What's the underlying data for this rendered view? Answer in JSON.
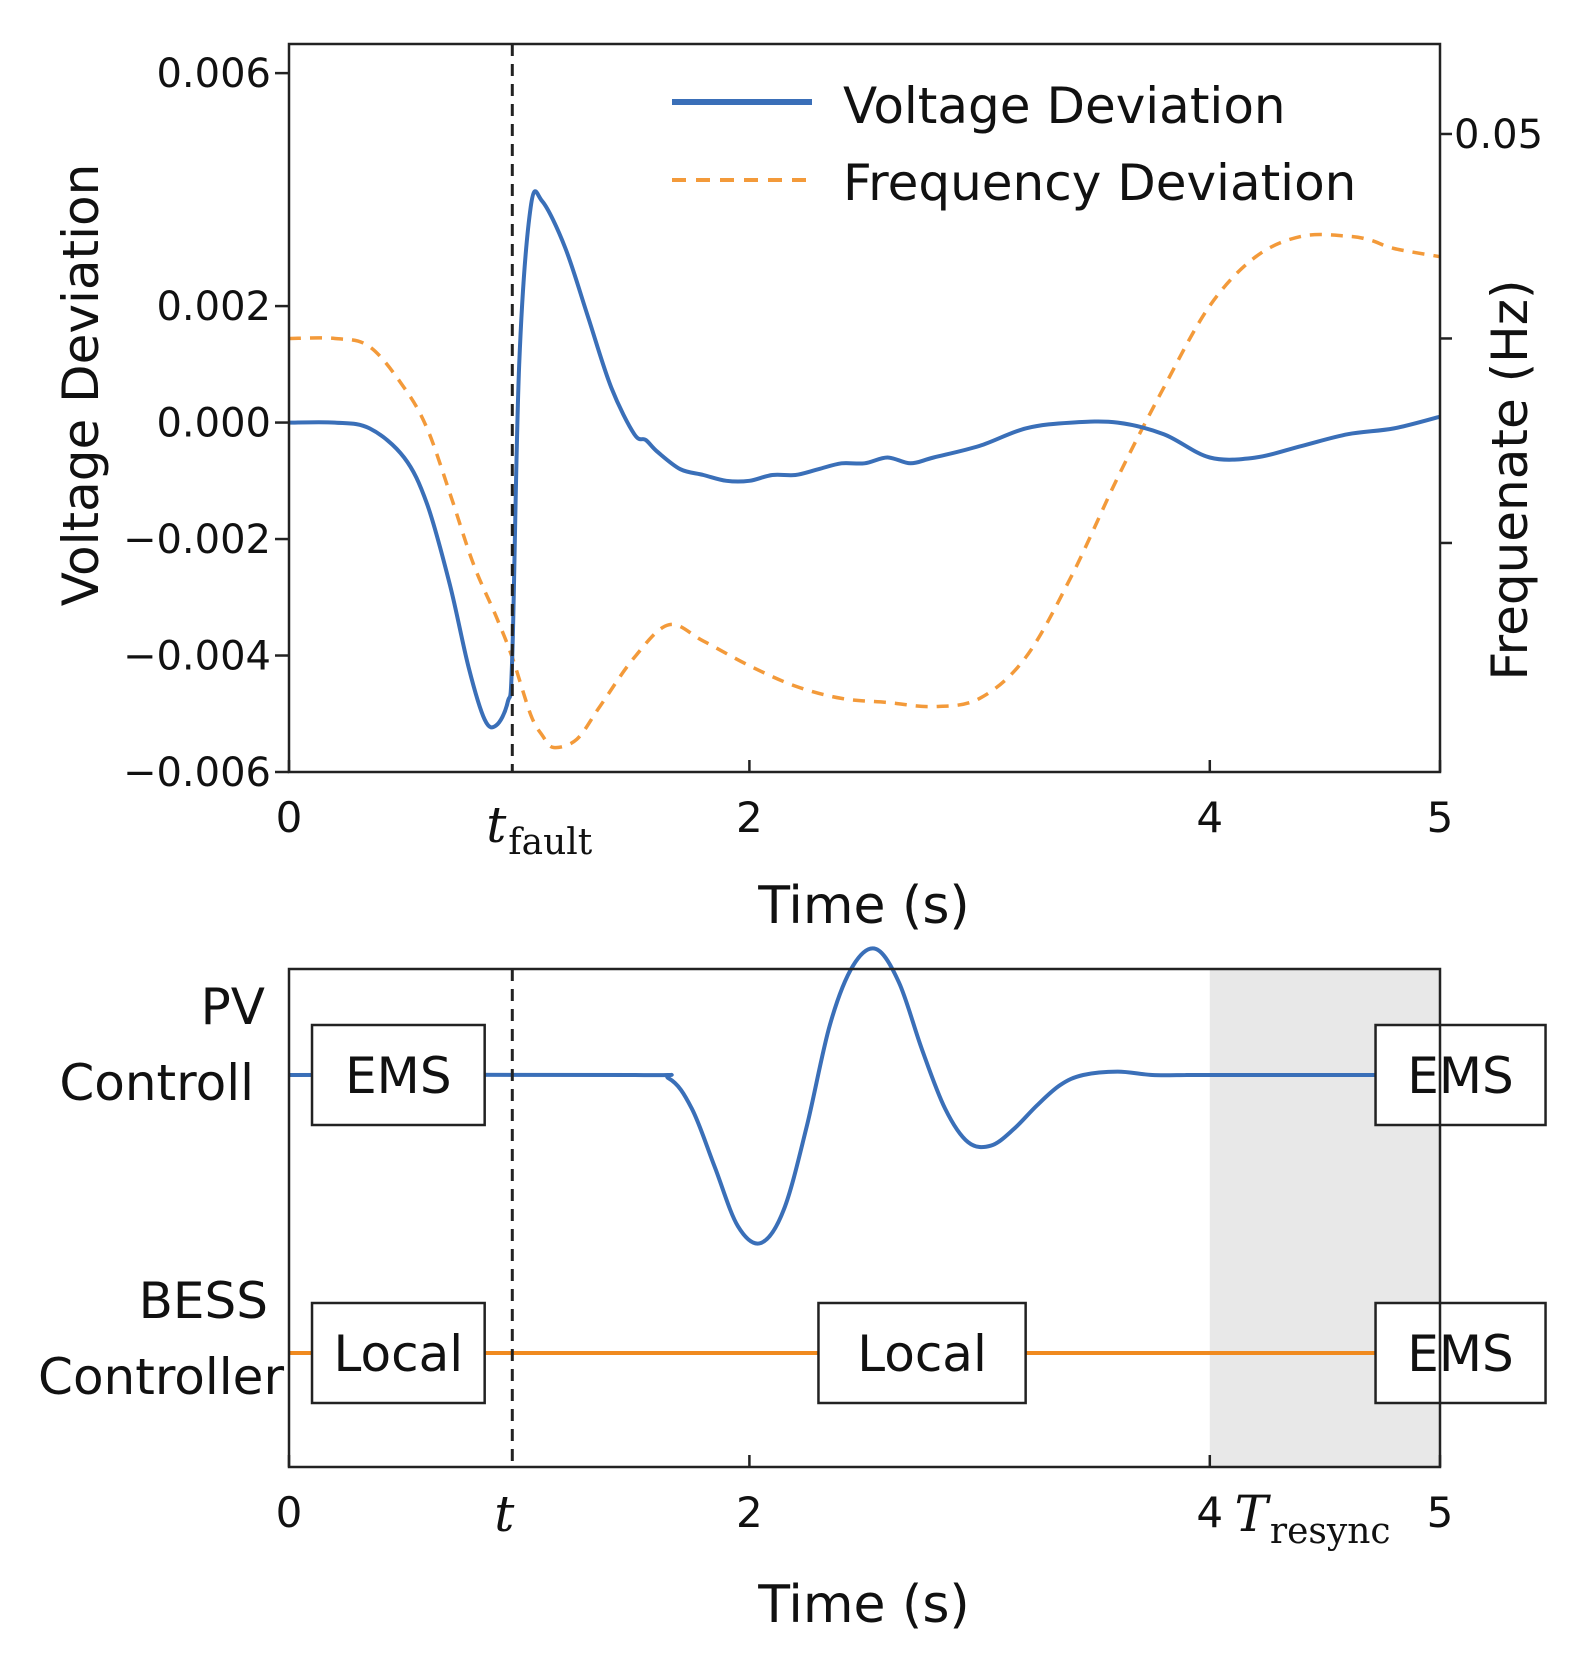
{
  "colors": {
    "voltage": "#3a6fb8",
    "frequency": "#f39a3a",
    "bess": "#f08a1f",
    "shade": "#e8e8e8",
    "axis": "#222222"
  },
  "chart_data": [
    {
      "type": "line",
      "title": "",
      "xlabel": "Time (s)",
      "ylabel": "Voltage Deviation",
      "ylabel_right": "Frequenate (Hz)",
      "xlim": [
        0,
        5
      ],
      "ylim": [
        -0.006,
        0.0065
      ],
      "x_ticks": [
        {
          "value": 0,
          "label": "0"
        },
        {
          "value": 2,
          "label": "2"
        },
        {
          "value": 4,
          "label": "4"
        },
        {
          "value": 5,
          "label": "5"
        }
      ],
      "fault_tick": {
        "value": 0.97,
        "label_main": "t",
        "label_sub": "fault"
      },
      "y_ticks": [
        {
          "value": 0.006,
          "label": "0.006"
        },
        {
          "value": 0.002,
          "label": "0.002"
        },
        {
          "value": 0.0,
          "label": "0.000"
        },
        {
          "value": -0.002,
          "label": "−0.002"
        },
        {
          "value": -0.004,
          "label": "−0.004"
        },
        {
          "value": -0.006,
          "label": "−0.006"
        }
      ],
      "y_right_ticks": [
        {
          "value": 0.05,
          "label": "0.05"
        },
        {
          "value": 0.0,
          "label": ""
        },
        {
          "value": -0.05,
          "label": ""
        }
      ],
      "y_right_lim": [
        -0.106,
        0.072
      ],
      "legend_position": "top-right",
      "series": [
        {
          "name": "Voltage Deviation",
          "style": "solid",
          "x": [
            0,
            0.2,
            0.35,
            0.5,
            0.6,
            0.7,
            0.78,
            0.85,
            0.9,
            0.95,
            0.97,
            1.0,
            1.05,
            1.1,
            1.2,
            1.3,
            1.4,
            1.5,
            1.55,
            1.6,
            1.7,
            1.8,
            1.9,
            2.0,
            2.1,
            2.2,
            2.3,
            2.4,
            2.5,
            2.6,
            2.7,
            2.8,
            3.0,
            3.2,
            3.4,
            3.6,
            3.8,
            4.0,
            4.2,
            4.4,
            4.6,
            4.8,
            5.0
          ],
          "y": [
            0.0,
            0.0,
            -0.0001,
            -0.0006,
            -0.0014,
            -0.0028,
            -0.0042,
            -0.0051,
            -0.0052,
            -0.0048,
            -0.004,
            0.001,
            0.0037,
            0.0038,
            0.003,
            0.0018,
            0.0006,
            -0.0002,
            -0.0003,
            -0.0005,
            -0.0008,
            -0.0009,
            -0.001,
            -0.001,
            -0.0009,
            -0.0009,
            -0.0008,
            -0.0007,
            -0.0007,
            -0.0006,
            -0.0007,
            -0.0006,
            -0.0004,
            -0.0001,
            0.0,
            0.0,
            -0.0002,
            -0.0006,
            -0.0006,
            -0.0004,
            -0.0002,
            -0.0001,
            0.0001
          ]
        },
        {
          "name": "Frequency Deviation",
          "style": "dashed",
          "x": [
            0,
            0.2,
            0.35,
            0.5,
            0.6,
            0.7,
            0.8,
            0.9,
            0.97,
            1.05,
            1.1,
            1.15,
            1.25,
            1.35,
            1.5,
            1.65,
            1.8,
            2.0,
            2.2,
            2.4,
            2.6,
            2.8,
            3.0,
            3.2,
            3.4,
            3.6,
            3.8,
            4.0,
            4.2,
            4.4,
            4.6,
            4.7,
            4.8,
            5.0
          ],
          "y": [
            0.0,
            0.0,
            -0.002,
            -0.012,
            -0.022,
            -0.038,
            -0.055,
            -0.068,
            -0.078,
            -0.092,
            -0.097,
            -0.1,
            -0.098,
            -0.09,
            -0.078,
            -0.07,
            -0.074,
            -0.08,
            -0.085,
            -0.088,
            -0.089,
            -0.09,
            -0.088,
            -0.078,
            -0.058,
            -0.034,
            -0.012,
            0.008,
            0.02,
            0.025,
            0.025,
            0.024,
            0.022,
            0.02
          ]
        }
      ]
    },
    {
      "type": "line",
      "title": "",
      "xlabel": "Time (s)",
      "ylabel": "",
      "xlim": [
        0,
        5
      ],
      "x_ticks": [
        {
          "value": 0,
          "label": "0"
        },
        {
          "value": 2,
          "label": "2"
        },
        {
          "value": 4,
          "label": "4"
        },
        {
          "value": 5,
          "label": "5"
        }
      ],
      "fault_tick": {
        "value": 0.97,
        "label": "t"
      },
      "resync_tick": {
        "value": 4.4,
        "label_main": "T",
        "label_sub": "resync"
      },
      "shaded_region": [
        4.0,
        5.0
      ],
      "row_labels": [
        {
          "line1": "PV",
          "line2": "Controll"
        },
        {
          "line1": "BESS",
          "line2": "Controller"
        }
      ],
      "pv_trace": {
        "x": [
          0,
          1.5,
          1.65,
          1.75,
          1.85,
          1.95,
          2.05,
          2.15,
          2.25,
          2.35,
          2.45,
          2.55,
          2.65,
          2.75,
          2.85,
          2.95,
          3.05,
          3.15,
          3.25,
          3.35,
          3.45,
          3.6,
          3.75,
          3.9,
          4.0,
          5.0
        ],
        "y": [
          0,
          0,
          -0.02,
          -0.2,
          -0.55,
          -0.9,
          -1.0,
          -0.8,
          -0.3,
          0.3,
          0.65,
          0.75,
          0.55,
          0.15,
          -0.2,
          -0.4,
          -0.42,
          -0.32,
          -0.18,
          -0.06,
          0.0,
          0.02,
          0.0,
          0.0,
          0.0,
          0.0
        ]
      },
      "pv_boxes": [
        {
          "x_start": 0.1,
          "x_end": 0.85,
          "label": "EMS"
        },
        {
          "x_start": 4.72,
          "x_end": 4.95,
          "label": "EMS"
        }
      ],
      "bess_boxes": [
        {
          "x_start": 0.1,
          "x_end": 0.85,
          "label": "Local"
        },
        {
          "x_start": 2.3,
          "x_end": 3.2,
          "label": "Local"
        },
        {
          "x_start": 4.72,
          "x_end": 4.95,
          "label": "EMS"
        }
      ]
    }
  ]
}
